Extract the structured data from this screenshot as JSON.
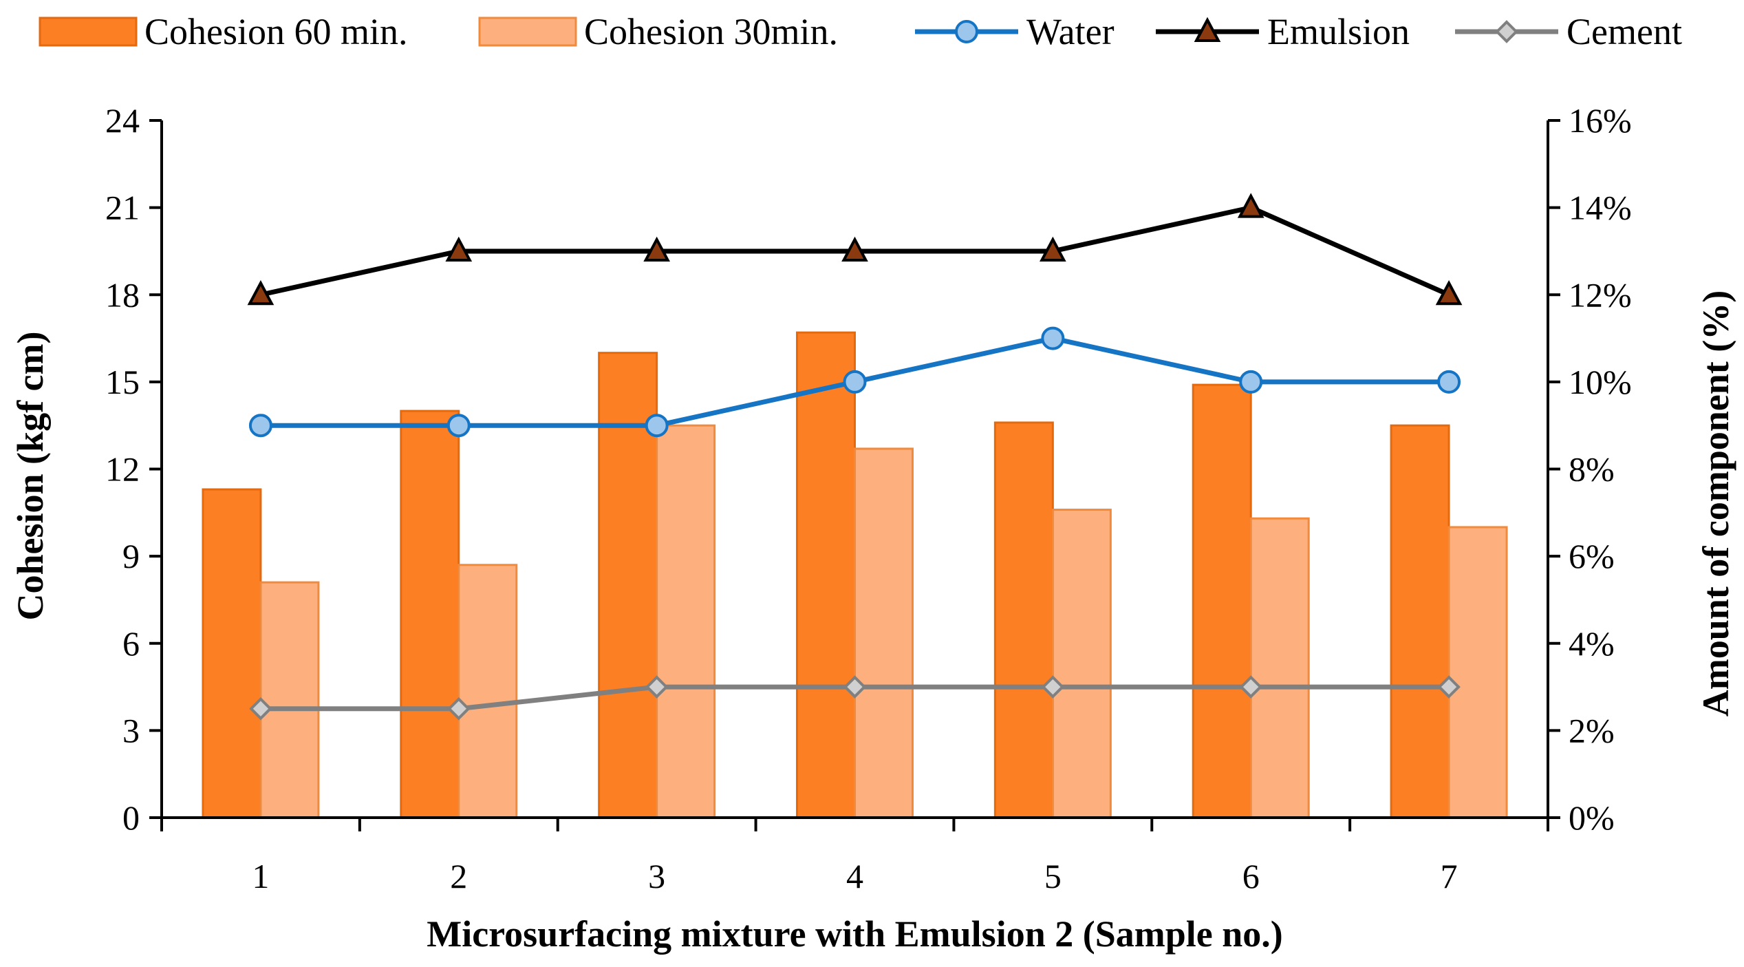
{
  "chart_data": {
    "type": "bar",
    "categories": [
      "1",
      "2",
      "3",
      "4",
      "5",
      "6",
      "7"
    ],
    "xlabel": "Microsurfacing mixture with Emulsion 2 (Sample no.)",
    "ylabel": "Cohesion (kgf cm)",
    "y2label": "Amount of component (%)",
    "ylim": [
      0,
      24
    ],
    "yticks": [
      0,
      3,
      6,
      9,
      12,
      15,
      18,
      21,
      24
    ],
    "y2lim": [
      0,
      16
    ],
    "y2ticks": [
      "0%",
      "2%",
      "4%",
      "6%",
      "8%",
      "10%",
      "12%",
      "14%",
      "16%"
    ],
    "grid": false,
    "legend": "top",
    "bar_series": [
      {
        "name": "Cohesion 60 min.",
        "axis": "left",
        "color": "#fd7f23",
        "edge": "#e46a10",
        "values": [
          11.3,
          14.0,
          16.0,
          16.7,
          13.6,
          14.9,
          13.5
        ]
      },
      {
        "name": "Cohesion 30min.",
        "axis": "left",
        "color": "#fdb07d",
        "edge": "#f08a3c",
        "values": [
          8.1,
          8.7,
          13.5,
          12.7,
          10.6,
          10.3,
          10.0
        ]
      }
    ],
    "line_series": [
      {
        "name": "Water",
        "axis": "right",
        "unit": "%",
        "color": "#1574c4",
        "marker": "circle",
        "marker_fill": "#9cc6ec",
        "values": [
          9,
          9,
          9,
          10,
          11,
          10,
          10
        ]
      },
      {
        "name": "Emulsion",
        "axis": "right",
        "unit": "%",
        "color": "#000000",
        "marker": "triangle",
        "marker_fill": "#8b3a10",
        "values": [
          12,
          13,
          13,
          13,
          13,
          14,
          12
        ]
      },
      {
        "name": "Cement",
        "axis": "right",
        "unit": "%",
        "color": "#808080",
        "marker": "diamond",
        "marker_fill": "#d0d0d0",
        "values": [
          2.5,
          2.5,
          3,
          3,
          3,
          3,
          3
        ]
      }
    ]
  }
}
